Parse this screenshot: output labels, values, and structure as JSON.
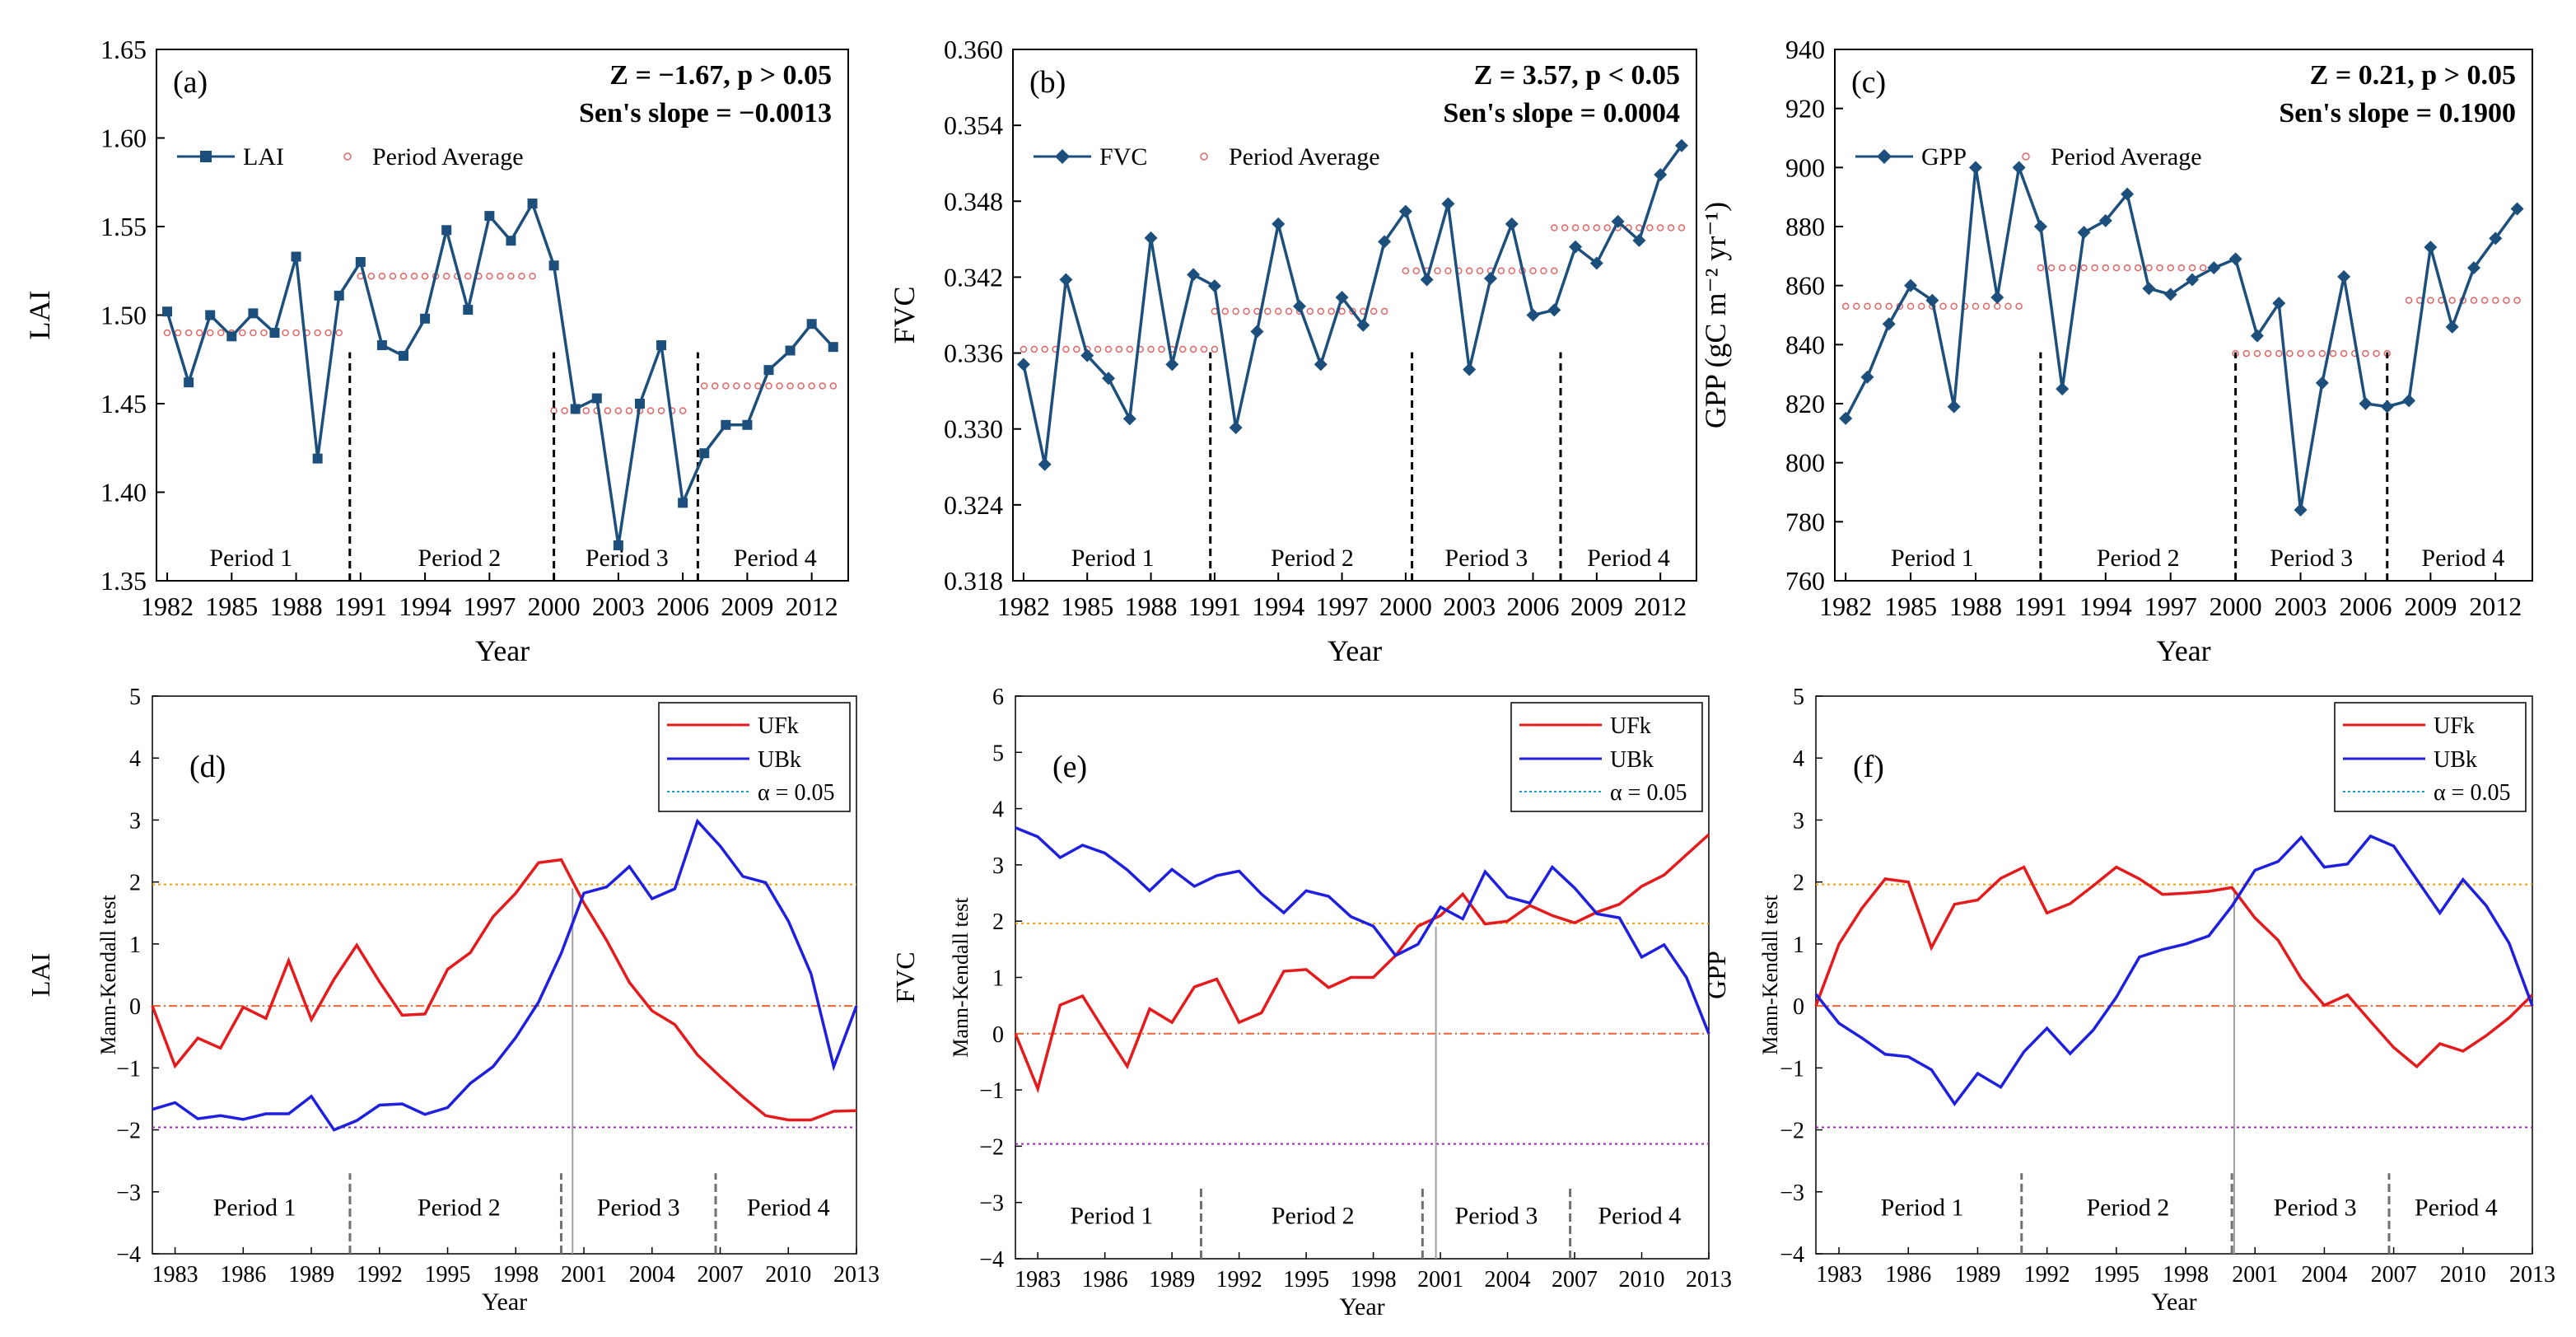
{
  "chart_data": [
    {
      "type": "line",
      "panel_label": "(a)",
      "stats": [
        "Z = −1.67, p > 0.05",
        "Sen's slope = −0.0013"
      ],
      "xlabel": "Year",
      "ylabel": "LAI",
      "x_ticks": [
        "1982",
        "1985",
        "1988",
        "1991",
        "1994",
        "1997",
        "2000",
        "2003",
        "2006",
        "2009",
        "2012"
      ],
      "y_ticks": [
        "1.35",
        "1.40",
        "1.45",
        "1.50",
        "1.55",
        "1.60",
        "1.65"
      ],
      "xlim": [
        1981.5,
        2013.7
      ],
      "ylim": [
        1.35,
        1.65
      ],
      "legend": [
        "LAI",
        "Period Average"
      ],
      "marker": "square",
      "years": [
        1982,
        1983,
        1984,
        1985,
        1986,
        1987,
        1988,
        1989,
        1990,
        1991,
        1992,
        1993,
        1994,
        1995,
        1996,
        1997,
        1998,
        1999,
        2000,
        2001,
        2002,
        2003,
        2004,
        2005,
        2006,
        2007,
        2008,
        2009,
        2010,
        2011,
        2012,
        2013
      ],
      "values": [
        1.502,
        1.462,
        1.5,
        1.488,
        1.501,
        1.49,
        1.533,
        1.419,
        1.511,
        1.53,
        1.483,
        1.477,
        1.498,
        1.548,
        1.503,
        1.556,
        1.542,
        1.563,
        1.528,
        1.447,
        1.453,
        1.37,
        1.45,
        1.483,
        1.394,
        1.422,
        1.438,
        1.438,
        1.469,
        1.48,
        1.495,
        1.482
      ],
      "period_averages": [
        {
          "from": 1982,
          "to": 1990,
          "value": 1.49
        },
        {
          "from": 1991,
          "to": 1999,
          "value": 1.522
        },
        {
          "from": 2000,
          "to": 2006,
          "value": 1.446
        },
        {
          "from": 2007,
          "to": 2013,
          "value": 1.46
        }
      ],
      "dividers": [
        1990.5,
        2000.0,
        2006.7
      ],
      "periods": [
        {
          "label": "Period 1",
          "x": 1985.9
        },
        {
          "label": "Period 2",
          "x": 1995.6
        },
        {
          "label": "Period 3",
          "x": 2003.4
        },
        {
          "label": "Period 4",
          "x": 2010.3
        }
      ]
    },
    {
      "type": "line",
      "panel_label": "(b)",
      "stats": [
        "Z = 3.57, p < 0.05",
        "Sen's slope = 0.0004"
      ],
      "xlabel": "Year",
      "ylabel": "FVC",
      "x_ticks": [
        "1982",
        "1985",
        "1988",
        "1991",
        "1994",
        "1997",
        "2000",
        "2003",
        "2006",
        "2009",
        "2012"
      ],
      "y_ticks": [
        "0.318",
        "0.324",
        "0.330",
        "0.336",
        "0.342",
        "0.348",
        "0.354",
        "0.360"
      ],
      "xlim": [
        1981.5,
        2013.7
      ],
      "ylim": [
        0.318,
        0.36
      ],
      "legend": [
        "FVC",
        "Period Average"
      ],
      "marker": "diamond",
      "years": [
        1982,
        1983,
        1984,
        1985,
        1986,
        1987,
        1988,
        1989,
        1990,
        1991,
        1992,
        1993,
        1994,
        1995,
        1996,
        1997,
        1998,
        1999,
        2000,
        2001,
        2002,
        2003,
        2004,
        2005,
        2006,
        2007,
        2008,
        2009,
        2010,
        2011,
        2012,
        2013
      ],
      "values": [
        0.3351,
        0.3272,
        0.3418,
        0.3358,
        0.334,
        0.3308,
        0.3451,
        0.3351,
        0.3422,
        0.3413,
        0.3301,
        0.3377,
        0.3462,
        0.3397,
        0.3351,
        0.3404,
        0.3382,
        0.3448,
        0.3472,
        0.3418,
        0.3478,
        0.3347,
        0.3419,
        0.3462,
        0.339,
        0.3394,
        0.3444,
        0.3431,
        0.3464,
        0.3449,
        0.3501,
        0.3524
      ],
      "period_averages": [
        {
          "from": 1982,
          "to": 1991,
          "value": 0.3363
        },
        {
          "from": 1991,
          "to": 1999,
          "value": 0.3393
        },
        {
          "from": 2000,
          "to": 2007,
          "value": 0.3425
        },
        {
          "from": 2007,
          "to": 2013,
          "value": 0.3459
        }
      ],
      "dividers": [
        1990.8,
        2000.3,
        2007.3
      ],
      "periods": [
        {
          "label": "Period 1",
          "x": 1986.2
        },
        {
          "label": "Period 2",
          "x": 1995.6
        },
        {
          "label": "Period 3",
          "x": 2003.8
        },
        {
          "label": "Period 4",
          "x": 2010.5
        }
      ]
    },
    {
      "type": "line",
      "panel_label": "(c)",
      "stats": [
        "Z = 0.21, p > 0.05",
        "Sen's slope = 0.1900"
      ],
      "xlabel": "Year",
      "ylabel": "GPP (gC m⁻² yr⁻¹)",
      "x_ticks": [
        "1982",
        "1985",
        "1988",
        "1991",
        "1994",
        "1997",
        "2000",
        "2003",
        "2006",
        "2009",
        "2012"
      ],
      "y_ticks": [
        "760",
        "780",
        "800",
        "820",
        "840",
        "860",
        "880",
        "900",
        "920",
        "940"
      ],
      "xlim": [
        1981.5,
        2013.7
      ],
      "ylim": [
        760,
        940
      ],
      "legend": [
        "GPP",
        "Period Average"
      ],
      "marker": "diamond",
      "years": [
        1982,
        1983,
        1984,
        1985,
        1986,
        1987,
        1988,
        1989,
        1990,
        1991,
        1992,
        1993,
        1994,
        1995,
        1996,
        1997,
        1998,
        1999,
        2000,
        2001,
        2002,
        2003,
        2004,
        2005,
        2006,
        2007,
        2008,
        2009,
        2010,
        2011,
        2012,
        2013
      ],
      "values": [
        815,
        829,
        847,
        860,
        855,
        819,
        900,
        856,
        900,
        880,
        825,
        878,
        882,
        891,
        859,
        857,
        862,
        866,
        869,
        843,
        854,
        784,
        827,
        863,
        820,
        819,
        821,
        873,
        846,
        866,
        876,
        886
      ],
      "period_averages": [
        {
          "from": 1982,
          "to": 1990,
          "value": 853
        },
        {
          "from": 1991,
          "to": 1999,
          "value": 866
        },
        {
          "from": 2000,
          "to": 2007,
          "value": 837
        },
        {
          "from": 2008,
          "to": 2013,
          "value": 855
        }
      ],
      "dividers": [
        1991.0,
        2000.0,
        2007.0
      ],
      "periods": [
        {
          "label": "Period 1",
          "x": 1986.0
        },
        {
          "label": "Period 2",
          "x": 1995.5
        },
        {
          "label": "Period 3",
          "x": 2003.5
        },
        {
          "label": "Period 4",
          "x": 2010.5
        }
      ]
    },
    {
      "type": "line",
      "panel_label": "(d)",
      "xlabel": "Year",
      "ylabel": "LAI",
      "ylabel2": "Mann-Kendall test",
      "x_ticks": [
        "1983",
        "1986",
        "1989",
        "1992",
        "1995",
        "1998",
        "2001",
        "2004",
        "2007",
        "2010",
        "2013"
      ],
      "y_ticks": [
        "−4",
        "−3",
        "−2",
        "−1",
        "0",
        "1",
        "2",
        "3",
        "4",
        "5"
      ],
      "xlim": [
        1982,
        2013
      ],
      "ylim": [
        -4,
        5
      ],
      "legend": [
        "UFk",
        "UBk",
        "α = 0.05"
      ],
      "years": [
        1982,
        1983,
        1984,
        1985,
        1986,
        1987,
        1988,
        1989,
        1990,
        1991,
        1992,
        1993,
        1994,
        1995,
        1996,
        1997,
        1998,
        1999,
        2000,
        2001,
        2002,
        2003,
        2004,
        2005,
        2006,
        2007,
        2008,
        2009,
        2010,
        2011,
        2012,
        2013
      ],
      "series": [
        {
          "name": "UFk",
          "values": [
            0,
            -0.97,
            -0.52,
            -0.68,
            -0.02,
            -0.2,
            0.73,
            -0.22,
            0.43,
            0.98,
            0.39,
            -0.15,
            -0.13,
            0.59,
            0.86,
            1.44,
            1.82,
            2.31,
            2.36,
            1.66,
            1.06,
            0.38,
            -0.08,
            -0.3,
            -0.79,
            -1.14,
            -1.47,
            -1.77,
            -1.84,
            -1.84,
            -1.7,
            -1.69
          ]
        },
        {
          "name": "UBk",
          "values": [
            -1.67,
            -1.56,
            -1.82,
            -1.77,
            -1.83,
            -1.74,
            -1.74,
            -1.46,
            -2.0,
            -1.85,
            -1.6,
            -1.58,
            -1.75,
            -1.64,
            -1.25,
            -0.98,
            -0.51,
            0.06,
            0.85,
            1.82,
            1.92,
            2.25,
            1.73,
            1.89,
            2.98,
            2.58,
            2.09,
            1.99,
            1.37,
            0.52,
            -0.98,
            0
          ]
        }
      ],
      "reference_lines": [
        1.96,
        0,
        -1.96
      ],
      "crossing": 2000.5,
      "dividers": [
        1990.7,
        2000.0,
        2006.8
      ],
      "periods": [
        {
          "label": "Period 1",
          "x": 1986.5
        },
        {
          "label": "Period 2",
          "x": 1995.5
        },
        {
          "label": "Period 3",
          "x": 2003.4
        },
        {
          "label": "Period 4",
          "x": 2010.0
        }
      ]
    },
    {
      "type": "line",
      "panel_label": "(e)",
      "xlabel": "Year",
      "ylabel": "FVC",
      "ylabel2": "Mann-Kendall test",
      "x_ticks": [
        "1983",
        "1986",
        "1989",
        "1992",
        "1995",
        "1998",
        "2001",
        "2004",
        "2007",
        "2010",
        "2013"
      ],
      "y_ticks": [
        "−4",
        "−3",
        "−2",
        "−1",
        "0",
        "1",
        "2",
        "3",
        "4",
        "5",
        "6"
      ],
      "xlim": [
        1982,
        2013
      ],
      "ylim": [
        -4,
        6
      ],
      "legend": [
        "UFk",
        "UBk",
        "α = 0.05"
      ],
      "years": [
        1982,
        1983,
        1984,
        1985,
        1986,
        1987,
        1988,
        1989,
        1990,
        1991,
        1992,
        1993,
        1994,
        1995,
        1996,
        1997,
        1998,
        1999,
        2000,
        2001,
        2002,
        2003,
        2004,
        2005,
        2006,
        2007,
        2008,
        2009,
        2010,
        2011,
        2012,
        2013
      ],
      "series": [
        {
          "name": "UFk",
          "values": [
            0,
            -0.98,
            0.51,
            0.67,
            0.04,
            -0.58,
            0.44,
            0.2,
            0.83,
            0.97,
            0.2,
            0.37,
            1.11,
            1.14,
            0.82,
            1.0,
            1.0,
            1.39,
            1.91,
            2.1,
            2.48,
            1.95,
            2.0,
            2.28,
            2.1,
            1.97,
            2.16,
            2.3,
            2.62,
            2.82,
            3.18,
            3.54
          ]
        },
        {
          "name": "UBk",
          "values": [
            3.66,
            3.5,
            3.13,
            3.35,
            3.21,
            2.91,
            2.54,
            2.92,
            2.62,
            2.81,
            2.89,
            2.48,
            2.15,
            2.54,
            2.44,
            2.08,
            1.91,
            1.39,
            1.59,
            2.25,
            2.04,
            2.88,
            2.43,
            2.32,
            2.96,
            2.59,
            2.13,
            2.06,
            1.36,
            1.58,
            1.0,
            0
          ]
        }
      ],
      "reference_lines": [
        1.96,
        0,
        -1.96
      ],
      "crossing": 2000.8,
      "dividers": [
        1990.3,
        2000.2,
        2006.8
      ],
      "periods": [
        {
          "label": "Period 1",
          "x": 1986.3
        },
        {
          "label": "Period 2",
          "x": 1995.3
        },
        {
          "label": "Period 3",
          "x": 2003.5
        },
        {
          "label": "Period 4",
          "x": 2009.9
        }
      ]
    },
    {
      "type": "line",
      "panel_label": "(f)",
      "xlabel": "Year",
      "ylabel": "GPP",
      "ylabel2": "Mann-Kendall test",
      "x_ticks": [
        "1983",
        "1986",
        "1989",
        "1992",
        "1995",
        "1998",
        "2001",
        "2004",
        "2007",
        "2010",
        "2013"
      ],
      "y_ticks": [
        "−4",
        "−3",
        "−2",
        "−1",
        "0",
        "1",
        "2",
        "3",
        "4",
        "5"
      ],
      "xlim": [
        1982,
        2013
      ],
      "ylim": [
        -4,
        5
      ],
      "legend": [
        "UFk",
        "UBk",
        "α = 0.05"
      ],
      "years": [
        1982,
        1983,
        1984,
        1985,
        1986,
        1987,
        1988,
        1989,
        1990,
        1991,
        1992,
        1993,
        1994,
        1995,
        1996,
        1997,
        1998,
        1999,
        2000,
        2001,
        2002,
        2003,
        2004,
        2005,
        2006,
        2007,
        2008,
        2009,
        2010,
        2011,
        2012,
        2013
      ],
      "series": [
        {
          "name": "UFk",
          "values": [
            0,
            1.0,
            1.58,
            2.05,
            2.0,
            0.94,
            1.64,
            1.71,
            2.06,
            2.24,
            1.5,
            1.65,
            1.94,
            2.24,
            2.05,
            1.8,
            1.82,
            1.85,
            1.91,
            1.42,
            1.06,
            0.44,
            0.01,
            0.18,
            -0.25,
            -0.67,
            -0.98,
            -0.61,
            -0.73,
            -0.48,
            -0.19,
            0.18
          ]
        },
        {
          "name": "UBk",
          "values": [
            0.19,
            -0.28,
            -0.52,
            -0.78,
            -0.82,
            -1.03,
            -1.58,
            -1.09,
            -1.31,
            -0.74,
            -0.36,
            -0.77,
            -0.39,
            0.14,
            0.79,
            0.91,
            1.0,
            1.13,
            1.61,
            2.19,
            2.33,
            2.72,
            2.24,
            2.29,
            2.74,
            2.58,
            2.04,
            1.5,
            2.04,
            1.62,
            1.01,
            0
          ]
        }
      ],
      "reference_lines": [
        1.96,
        0,
        -1.96
      ],
      "crossing": 2000.1,
      "dividers": [
        1990.9,
        2000.0,
        2006.8
      ],
      "periods": [
        {
          "label": "Period 1",
          "x": 1986.6
        },
        {
          "label": "Period 2",
          "x": 1995.5
        },
        {
          "label": "Period 3",
          "x": 2003.6
        },
        {
          "label": "Period 4",
          "x": 2009.7
        }
      ]
    }
  ]
}
